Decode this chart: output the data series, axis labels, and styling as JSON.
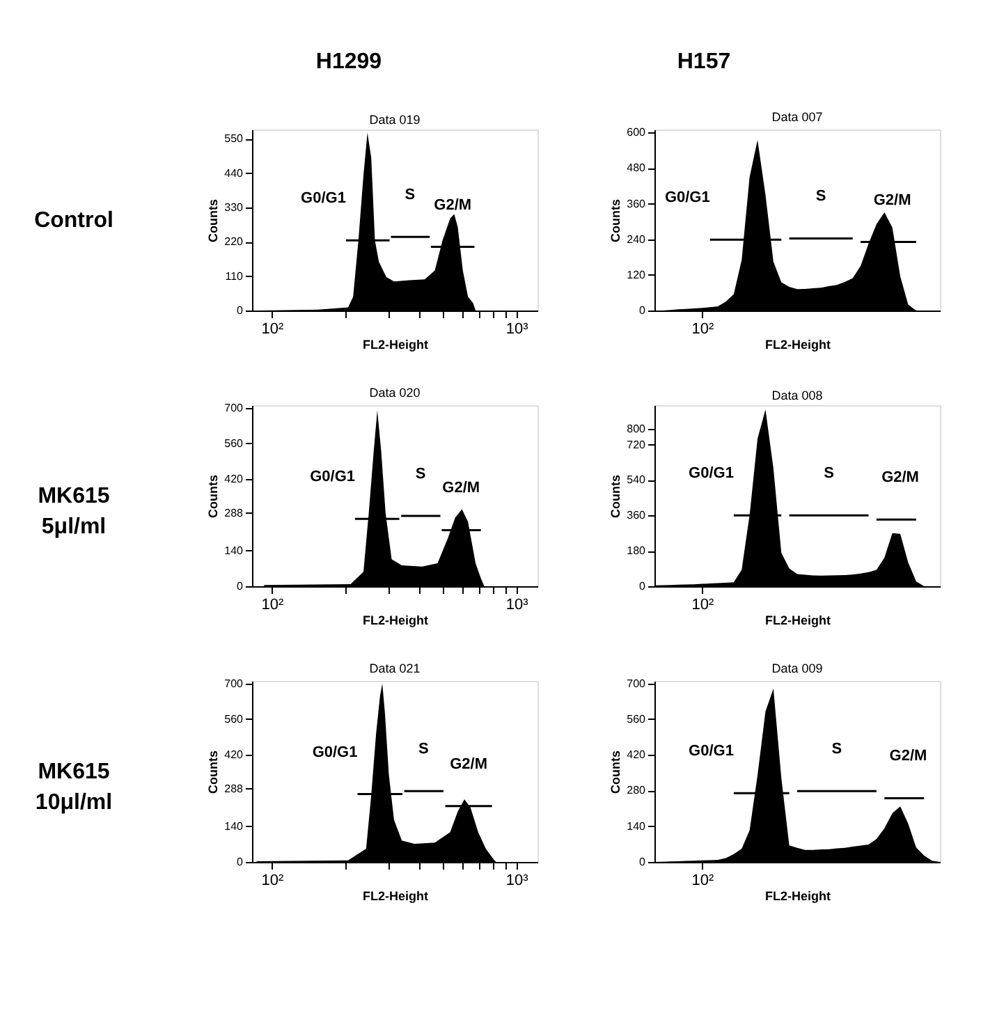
{
  "chart_data": [
    {
      "type": "area",
      "title": "Data 019",
      "xlabel": "FL2-Height",
      "ylabel": "Counts",
      "xlim": [
        83,
        1220
      ],
      "ylim": [
        0,
        580
      ],
      "grid": false,
      "log": "x",
      "xticks": [
        {
          "value": 100,
          "label": "10²"
        },
        {
          "value": 200,
          "label": null
        },
        {
          "value": 300,
          "label": null
        },
        {
          "value": 400,
          "label": null
        },
        {
          "value": 500,
          "label": null
        },
        {
          "value": 600,
          "label": null
        },
        {
          "value": 700,
          "label": null
        },
        {
          "value": 800,
          "label": null
        },
        {
          "value": 900,
          "label": null
        },
        {
          "value": 1000,
          "label": "10³"
        }
      ],
      "yticks": [
        0,
        110,
        220,
        330,
        440,
        550
      ],
      "series": [
        {
          "color": "#000000",
          "x": [
            88.7,
            154,
            205,
            215,
            226,
            237,
            246,
            255,
            264,
            274,
            294,
            316,
            365,
            422,
            464,
            499,
            536,
            557,
            576,
            604,
            634,
            665,
            681
          ],
          "values": [
            0,
            3,
            10,
            44,
            225,
            434,
            570,
            489,
            225,
            156,
            107,
            93,
            97,
            100,
            128,
            225,
            295,
            309,
            267,
            128,
            44,
            24,
            0
          ]
        },
        {
          "type": "line",
          "color": "#000000",
          "x": [
            201,
            303
          ],
          "values": [
            225,
            225
          ]
        },
        {
          "type": "line",
          "color": "#000000",
          "x": [
            307,
            442
          ],
          "values": [
            236,
            236
          ]
        },
        {
          "type": "line",
          "color": "#000000",
          "x": [
            447,
            674
          ],
          "values": [
            204,
            204
          ]
        }
      ],
      "annotations": [
        "H1299",
        "Control",
        {
          "text": "G0/G1",
          "x": 201,
          "y": 225
        },
        {
          "text": "S",
          "x": 367,
          "y": 236
        },
        {
          "text": "G2/M",
          "x": 549,
          "y": 204
        }
      ]
    },
    {
      "type": "area",
      "title": "Data 007",
      "xlabel": "FL2-Height",
      "ylabel": "Counts",
      "ylim": [
        0,
        610
      ],
      "grid": false,
      "categories": [
        null,
        null,
        null,
        null,
        null,
        null,
        "10²",
        null,
        null,
        null,
        null,
        null,
        null,
        null,
        null,
        null,
        null,
        null,
        null,
        null,
        null,
        null,
        null,
        null,
        null,
        null,
        null,
        null,
        null,
        null,
        null,
        null,
        null,
        null,
        null,
        null,
        null
      ],
      "yticks": [
        0,
        120,
        240,
        360,
        480,
        600
      ],
      "series": [
        {
          "color": "#000000",
          "values": [
            0,
            0,
            2,
            4,
            5,
            7,
            9,
            11,
            14,
            30,
            55,
            170,
            450,
            575,
            390,
            165,
            95,
            80,
            72,
            73,
            75,
            77,
            82,
            86,
            96,
            109,
            150,
            225,
            291,
            331,
            280,
            115,
            20,
            0,
            0,
            0,
            0
          ]
        },
        {
          "type": "line",
          "color": "#000000",
          "values": [
            null,
            null,
            null,
            null,
            null,
            null,
            null,
            239,
            239,
            239,
            239,
            239,
            239,
            239,
            239,
            239,
            239,
            null,
            null,
            null,
            null,
            null,
            null,
            null,
            null,
            null,
            null,
            null,
            null,
            null,
            null,
            null,
            null,
            null,
            null,
            null,
            null
          ]
        },
        {
          "type": "line",
          "color": "#000000",
          "values": [
            null,
            null,
            null,
            null,
            null,
            null,
            null,
            null,
            null,
            null,
            null,
            null,
            null,
            null,
            null,
            null,
            null,
            243,
            243,
            243,
            243,
            243,
            243,
            243,
            243,
            243,
            null,
            null,
            null,
            null,
            null,
            null,
            null,
            null,
            null,
            null,
            null
          ]
        },
        {
          "type": "line",
          "color": "#000000",
          "values": [
            null,
            null,
            null,
            null,
            null,
            null,
            null,
            null,
            null,
            null,
            null,
            null,
            null,
            null,
            null,
            null,
            null,
            null,
            null,
            null,
            null,
            null,
            null,
            null,
            null,
            null,
            231,
            231,
            231,
            231,
            231,
            231,
            231,
            231,
            null,
            null,
            null
          ]
        }
      ],
      "annotations": [
        "H157",
        "G0/G1",
        {
          "text": "S",
          "y": 243
        },
        {
          "text": "G2/M",
          "y": 231
        }
      ]
    },
    {
      "type": "area",
      "title": "Data 020",
      "xlabel": "FL2-Height",
      "ylabel": "Counts",
      "xlim": [
        83,
        1220
      ],
      "ylim": [
        0,
        710
      ],
      "grid": false,
      "log": "x",
      "xticks": [
        {
          "value": 100,
          "label": "10²"
        },
        {
          "value": 200,
          "label": null
        },
        {
          "value": 300,
          "label": null
        },
        {
          "value": 400,
          "label": null
        },
        {
          "value": 500,
          "label": null
        },
        {
          "value": 600,
          "label": null
        },
        {
          "value": 700,
          "label": null
        },
        {
          "value": 800,
          "label": null
        },
        {
          "value": 900,
          "label": null
        },
        {
          "value": 1000,
          "label": "10³"
        }
      ],
      "yticks": [
        0,
        140,
        288,
        420,
        560,
        700
      ],
      "series": [
        {
          "color": "#000000",
          "x": [
            93,
            210,
            237,
            249,
            261,
            270,
            280,
            292,
            309,
            340,
            412,
            476,
            524,
            562,
            599,
            634,
            681,
            715,
            739
          ],
          "values": [
            5,
            8,
            57,
            285,
            530,
            690,
            530,
            285,
            106,
            82,
            77,
            90,
            187,
            269,
            302,
            253,
            90,
            33,
            0
          ]
        },
        {
          "type": "line",
          "color": "#000000",
          "x": [
            219,
            332
          ],
          "values": [
            264,
            264
          ]
        },
        {
          "type": "line",
          "color": "#000000",
          "x": [
            338,
            489
          ],
          "values": [
            276,
            276
          ]
        },
        {
          "type": "line",
          "color": "#000000",
          "x": [
            495,
            716
          ],
          "values": [
            220,
            220
          ]
        }
      ],
      "annotations": [
        "MK615 5μl/ml",
        {
          "text": "G0/G1",
          "x": 219,
          "y": 264
        },
        {
          "text": "S",
          "x": 406,
          "y": 276
        },
        {
          "text": "G2/M",
          "x": 594,
          "y": 220
        }
      ]
    },
    {
      "type": "area",
      "title": "Data 008",
      "xlabel": "FL2-Height",
      "ylabel": "Counts",
      "ylim": [
        0,
        920
      ],
      "grid": false,
      "categories": [
        null,
        null,
        null,
        null,
        null,
        null,
        "10²",
        null,
        null,
        null,
        null,
        null,
        null,
        null,
        null,
        null,
        null,
        null,
        null,
        null,
        null,
        null,
        null,
        null,
        null,
        null,
        null,
        null,
        null,
        null,
        null,
        null,
        null,
        null,
        null,
        null,
        null
      ],
      "yticks": [
        0,
        180,
        360,
        540,
        720,
        800
      ],
      "series": [
        {
          "color": "#000000",
          "values": [
            4,
            5,
            6,
            8,
            9,
            10,
            12,
            14,
            16,
            18,
            20,
            84,
            362,
            750,
            898,
            600,
            170,
            90,
            62,
            58,
            55,
            54,
            55,
            56,
            57,
            59,
            65,
            72,
            83,
            145,
            270,
            266,
            120,
            25,
            0,
            0,
            0
          ]
        },
        {
          "type": "line",
          "color": "#000000",
          "values": [
            null,
            null,
            null,
            null,
            null,
            null,
            null,
            null,
            null,
            null,
            360,
            360,
            360,
            360,
            360,
            360,
            360,
            null,
            null,
            null,
            null,
            null,
            null,
            null,
            null,
            null,
            null,
            null,
            null,
            null,
            null,
            null,
            null,
            null,
            null,
            null,
            null
          ]
        },
        {
          "type": "line",
          "color": "#000000",
          "values": [
            null,
            null,
            null,
            null,
            null,
            null,
            null,
            null,
            null,
            null,
            null,
            null,
            null,
            null,
            null,
            null,
            null,
            360,
            360,
            360,
            360,
            360,
            360,
            360,
            360,
            360,
            360,
            360,
            null,
            null,
            null,
            null,
            null,
            null,
            null,
            null,
            null
          ]
        },
        {
          "type": "line",
          "color": "#000000",
          "values": [
            null,
            null,
            null,
            null,
            null,
            null,
            null,
            null,
            null,
            null,
            null,
            null,
            null,
            null,
            null,
            null,
            null,
            null,
            null,
            null,
            null,
            null,
            null,
            null,
            null,
            null,
            null,
            null,
            339,
            339,
            339,
            339,
            339,
            339,
            null,
            null,
            null
          ]
        }
      ],
      "annotations": [
        "G0/G1",
        {
          "text": "S",
          "y": 360
        },
        {
          "text": "G2/M",
          "y": 339
        }
      ]
    },
    {
      "type": "area",
      "title": "Data 021",
      "xlabel": "FL2-Height",
      "ylabel": "Counts",
      "xlim": [
        83,
        1220
      ],
      "ylim": [
        0,
        710
      ],
      "grid": false,
      "log": "x",
      "xticks": [
        {
          "value": 100,
          "label": "10²"
        },
        {
          "value": 200,
          "label": null
        },
        {
          "value": 300,
          "label": null
        },
        {
          "value": 400,
          "label": null
        },
        {
          "value": 500,
          "label": null
        },
        {
          "value": 600,
          "label": null
        },
        {
          "value": 700,
          "label": null
        },
        {
          "value": 800,
          "label": null
        },
        {
          "value": 900,
          "label": null
        },
        {
          "value": 1000,
          "label": "10³"
        }
      ],
      "yticks": [
        0,
        140,
        288,
        420,
        560,
        700
      ],
      "series": [
        {
          "color": "#000000",
          "x": [
            86.6,
            205,
            243,
            255,
            267,
            277,
            283,
            290,
            301,
            316,
            340,
            383,
            464,
            536,
            576,
            613,
            649,
            698,
            750,
            806,
            826
          ],
          "values": [
            3,
            6,
            52,
            262,
            505,
            651,
            700,
            586,
            343,
            165,
            84,
            71,
            76,
            117,
            198,
            246,
            214,
            117,
            52,
            11,
            0
          ]
        },
        {
          "type": "line",
          "color": "#000000",
          "x": [
            224,
            342
          ],
          "values": [
            266,
            266
          ]
        },
        {
          "type": "line",
          "color": "#000000",
          "x": [
            348,
            503
          ],
          "values": [
            278,
            278
          ]
        },
        {
          "type": "line",
          "color": "#000000",
          "x": [
            512,
            795
          ],
          "values": [
            219,
            219
          ]
        }
      ],
      "annotations": [
        "MK615 10μl/ml",
        {
          "text": "G0/G1",
          "x": 224,
          "y": 266
        },
        {
          "text": "S",
          "x": 417,
          "y": 278
        },
        {
          "text": "G2/M",
          "x": 638,
          "y": 219
        }
      ]
    },
    {
      "type": "area",
      "title": "Data 009",
      "xlabel": "FL2-Height",
      "ylabel": "Counts",
      "ylim": [
        0,
        710
      ],
      "grid": false,
      "categories": [
        null,
        null,
        null,
        null,
        null,
        null,
        "10²",
        null,
        null,
        null,
        null,
        null,
        null,
        null,
        null,
        null,
        null,
        null,
        null,
        null,
        null,
        null,
        null,
        null,
        null,
        null,
        null,
        null,
        null,
        null,
        null,
        null,
        null,
        null,
        null,
        null,
        null
      ],
      "yticks": [
        0,
        140,
        280,
        420,
        560,
        700
      ],
      "series": [
        {
          "color": "#000000",
          "values": [
            0,
            1,
            2,
            3,
            4,
            5,
            6,
            7,
            8,
            15,
            31,
            52,
            124,
            340,
            590,
            680,
            330,
            65,
            55,
            47,
            47,
            49,
            50,
            53,
            55,
            60,
            64,
            68,
            90,
            132,
            191,
            218,
            150,
            57,
            25,
            5,
            0
          ]
        },
        {
          "type": "line",
          "color": "#000000",
          "values": [
            null,
            null,
            null,
            null,
            null,
            null,
            null,
            null,
            null,
            null,
            270,
            270,
            270,
            270,
            270,
            270,
            270,
            270,
            null,
            null,
            null,
            null,
            null,
            null,
            null,
            null,
            null,
            null,
            null,
            null,
            null,
            null,
            null,
            null,
            null,
            null,
            null
          ]
        },
        {
          "type": "line",
          "color": "#000000",
          "values": [
            null,
            null,
            null,
            null,
            null,
            null,
            null,
            null,
            null,
            null,
            null,
            null,
            null,
            null,
            null,
            null,
            null,
            null,
            278,
            278,
            278,
            278,
            278,
            278,
            278,
            278,
            278,
            278,
            278,
            null,
            null,
            null,
            null,
            null,
            null,
            null,
            null
          ]
        },
        {
          "type": "line",
          "color": "#000000",
          "values": [
            null,
            null,
            null,
            null,
            null,
            null,
            null,
            null,
            null,
            null,
            null,
            null,
            null,
            null,
            null,
            null,
            null,
            null,
            null,
            null,
            null,
            null,
            null,
            null,
            null,
            null,
            null,
            null,
            null,
            250,
            250,
            250,
            250,
            250,
            250,
            null,
            null
          ]
        }
      ],
      "annotations": [
        "G0/G1",
        {
          "text": "S",
          "y": 278
        },
        {
          "text": "G2/M",
          "y": 250
        }
      ]
    }
  ]
}
